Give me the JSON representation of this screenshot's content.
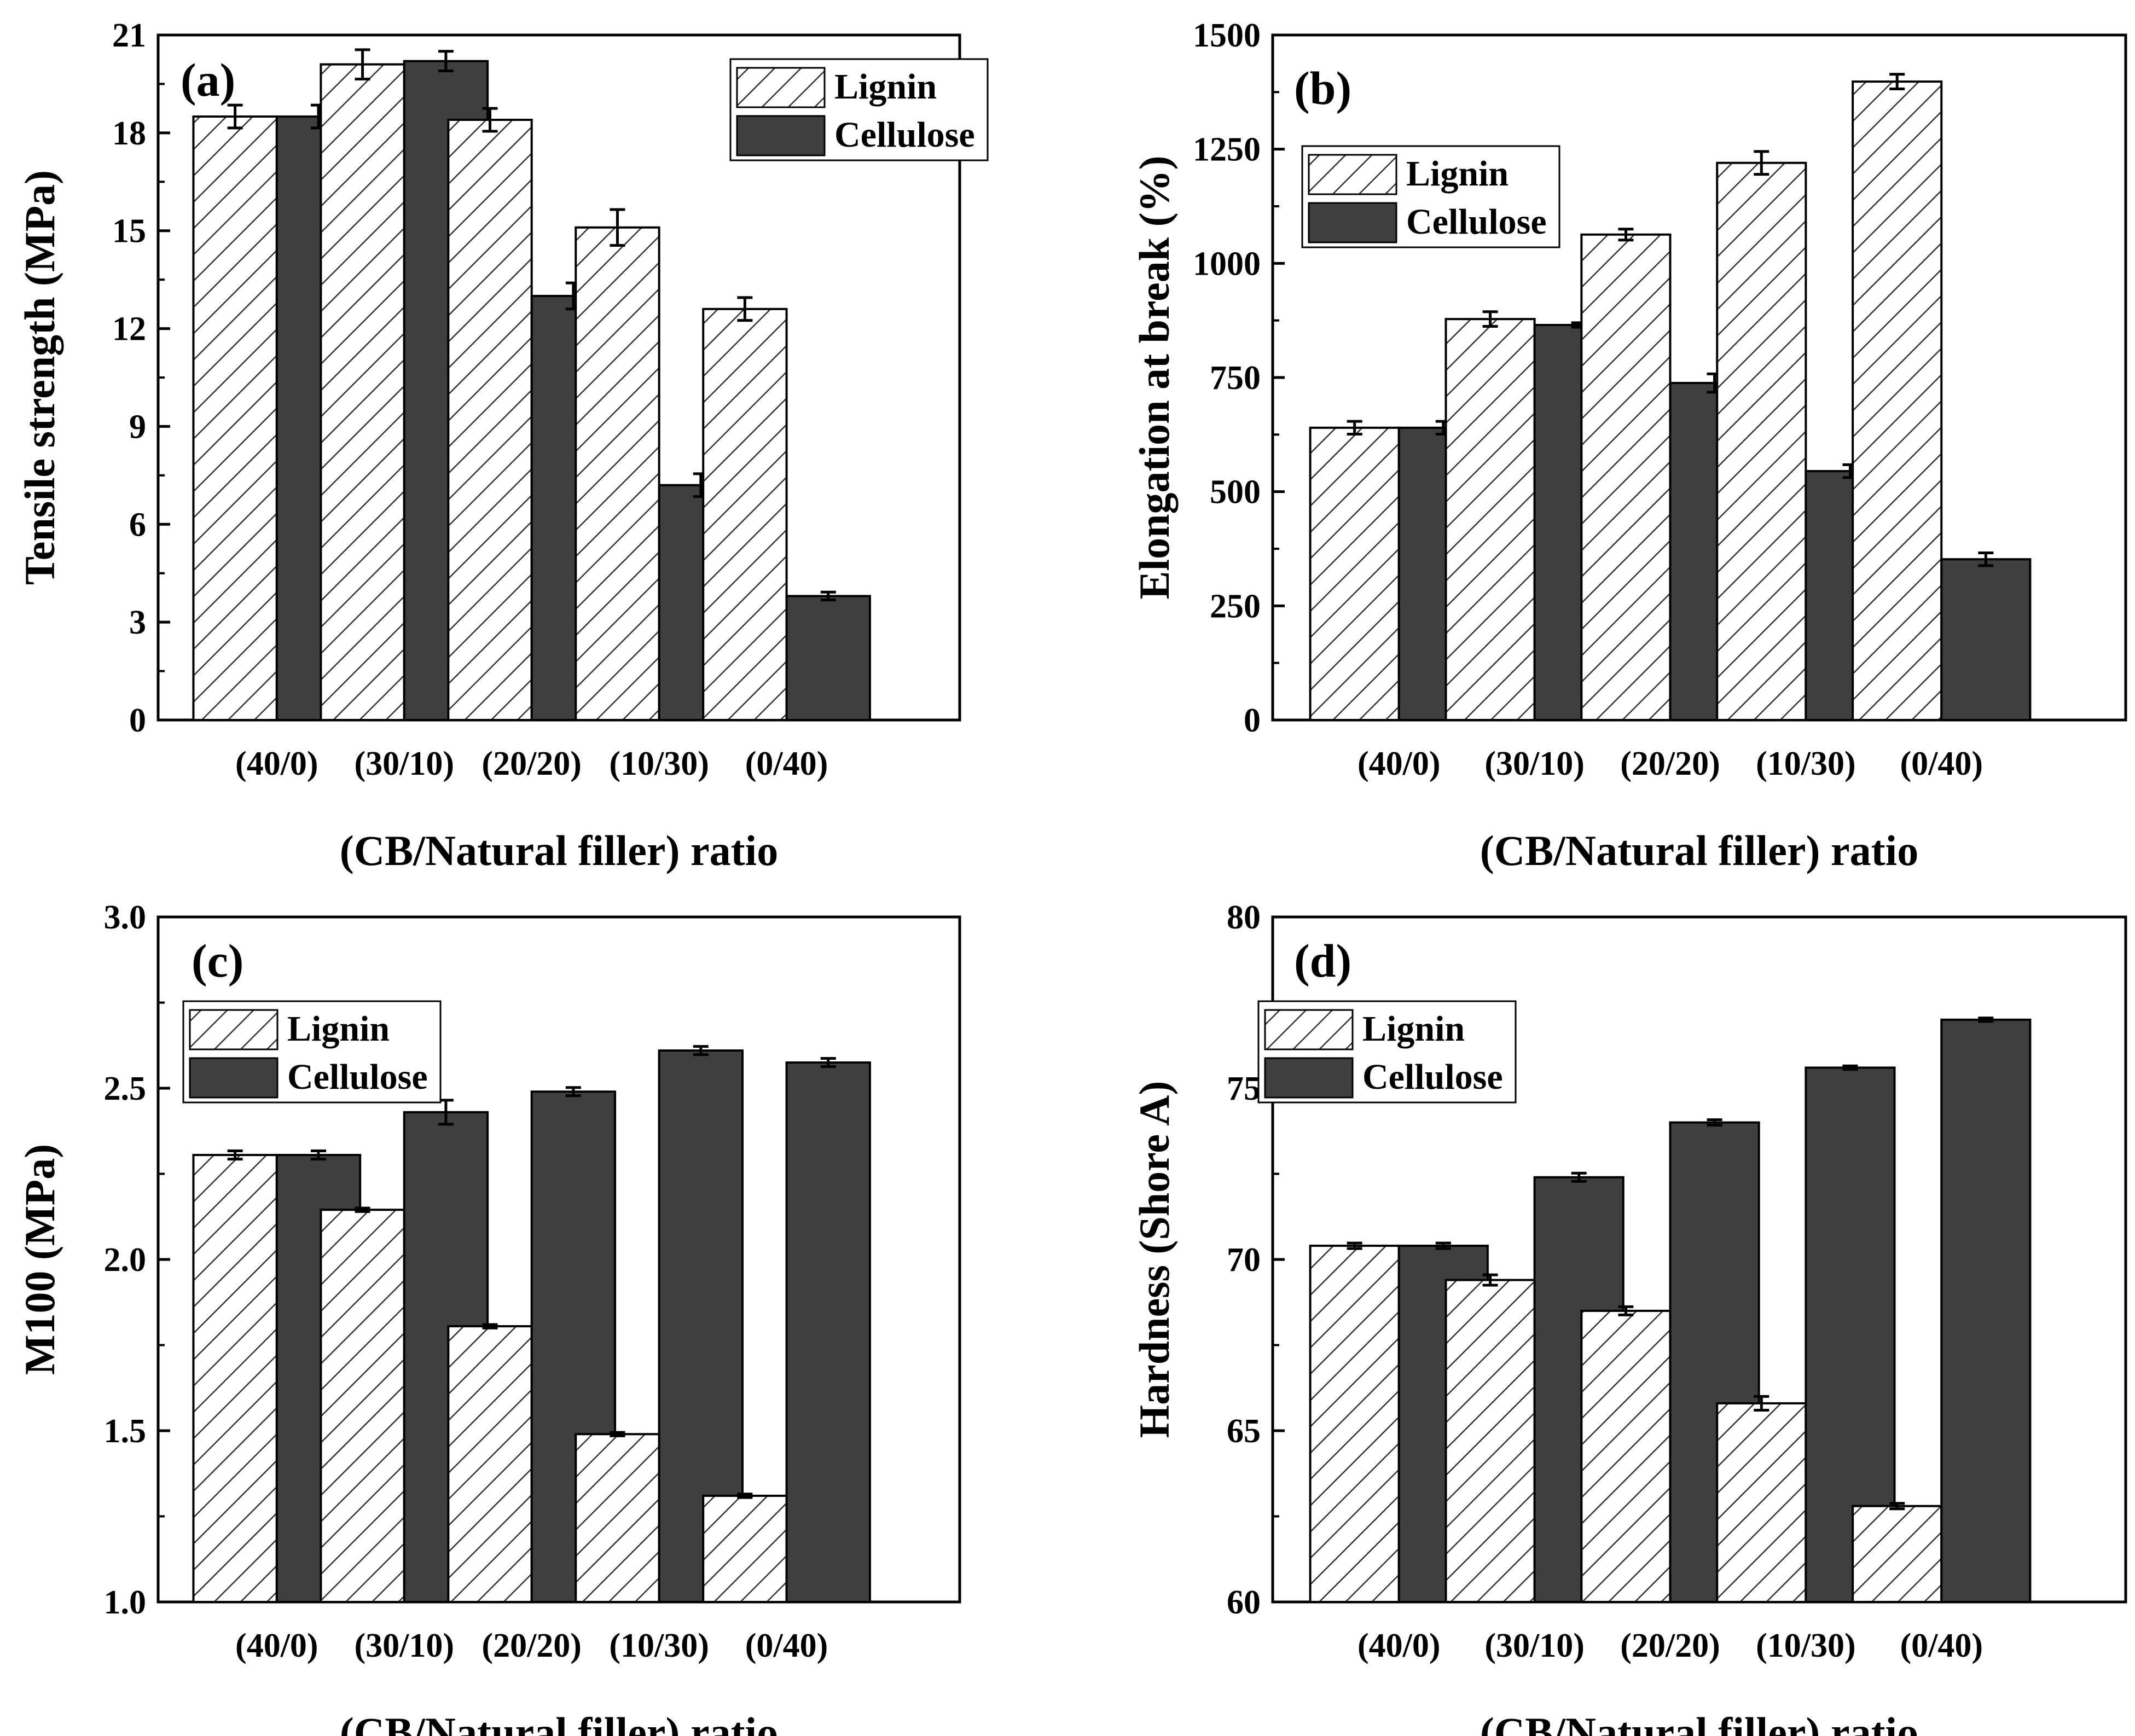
{
  "figure": {
    "panels": [
      "(a)",
      "(b)",
      "(c)",
      "(d)"
    ]
  },
  "colors": {
    "cellulose_fill": "#3f3f3f",
    "lignin_fill": "#ffffff",
    "hatch_stroke": "#333333",
    "axis": "#000000"
  },
  "chart_data": [
    {
      "type": "bar",
      "panel_label": "(a)",
      "title": "",
      "xlabel": "(CB/Natural filler) ratio",
      "ylabel": "Tensile strength (MPa)",
      "categories": [
        "(40/0)",
        "(30/10)",
        "(20/20)",
        "(10/30)",
        "(0/40)"
      ],
      "ylim": [
        0,
        21
      ],
      "yticks": [
        0,
        3,
        6,
        9,
        12,
        15,
        18,
        21
      ],
      "ytick_labels": [
        "0",
        "3",
        "6",
        "9",
        "12",
        "15",
        "18",
        "21"
      ],
      "legend": [
        "Lignin",
        "Cellulose"
      ],
      "legend_position": "top-right",
      "series": [
        {
          "name": "Lignin",
          "values": [
            18.5,
            20.1,
            18.4,
            15.1,
            12.6
          ],
          "errors": [
            0.35,
            0.45,
            0.35,
            0.55,
            0.35
          ]
        },
        {
          "name": "Cellulose",
          "values": [
            18.5,
            20.2,
            13.0,
            7.2,
            3.8
          ],
          "errors": [
            0.35,
            0.3,
            0.4,
            0.35,
            0.12
          ]
        }
      ]
    },
    {
      "type": "bar",
      "panel_label": "(b)",
      "title": "",
      "xlabel": "(CB/Natural filler) ratio",
      "ylabel": "Elongation at break (%)",
      "categories": [
        "(40/0)",
        "(30/10)",
        "(20/20)",
        "(10/30)",
        "(0/40)"
      ],
      "ylim": [
        0,
        1500
      ],
      "yticks": [
        0,
        250,
        500,
        750,
        1000,
        1250,
        1500
      ],
      "ytick_labels": [
        "0",
        "250",
        "500",
        "750",
        "1000",
        "1250",
        "1500"
      ],
      "legend": [
        "Lignin",
        "Cellulose"
      ],
      "legend_position": "top-left",
      "series": [
        {
          "name": "Lignin",
          "values": [
            640,
            878,
            1063,
            1220,
            1398
          ],
          "errors": [
            14,
            16,
            12,
            25,
            16
          ]
        },
        {
          "name": "Cellulose",
          "values": [
            640,
            865,
            738,
            545,
            352
          ],
          "errors": [
            14,
            5,
            20,
            14,
            14
          ]
        }
      ]
    },
    {
      "type": "bar",
      "panel_label": "(c)",
      "title": "",
      "xlabel": "(CB/Natural filler) ratio",
      "ylabel": "M100 (MPa)",
      "categories": [
        "(40/0)",
        "(30/10)",
        "(20/20)",
        "(10/30)",
        "(0/40)"
      ],
      "ylim": [
        1.0,
        3.0
      ],
      "yticks": [
        1.0,
        1.5,
        2.0,
        2.5,
        3.0
      ],
      "ytick_labels": [
        "1.0",
        "1.5",
        "2.0",
        "2.5",
        "3.0"
      ],
      "legend": [
        "Lignin",
        "Cellulose"
      ],
      "legend_position": "top-left",
      "series": [
        {
          "name": "Lignin",
          "values": [
            2.305,
            2.145,
            1.805,
            1.49,
            1.31
          ],
          "errors": [
            0.012,
            0.005,
            0.005,
            0.005,
            0.005
          ]
        },
        {
          "name": "Cellulose",
          "values": [
            2.305,
            2.43,
            2.49,
            2.61,
            2.575
          ],
          "errors": [
            0.012,
            0.035,
            0.012,
            0.012,
            0.012
          ]
        }
      ]
    },
    {
      "type": "bar",
      "panel_label": "(d)",
      "title": "",
      "xlabel": "(CB/Natural filler) ratio",
      "ylabel": "Hardness (Shore A)",
      "categories": [
        "(40/0)",
        "(30/10)",
        "(20/20)",
        "(10/30)",
        "(0/40)"
      ],
      "ylim": [
        60,
        80
      ],
      "yticks": [
        60,
        65,
        70,
        75,
        80
      ],
      "ytick_labels": [
        "60",
        "65",
        "70",
        "75",
        "80"
      ],
      "legend": [
        "Lignin",
        "Cellulose"
      ],
      "legend_position": "top-left",
      "series": [
        {
          "name": "Lignin",
          "values": [
            70.4,
            69.4,
            68.5,
            65.8,
            62.8
          ],
          "errors": [
            0.08,
            0.15,
            0.12,
            0.2,
            0.08
          ]
        },
        {
          "name": "Cellulose",
          "values": [
            70.4,
            72.4,
            74.0,
            75.6,
            77.0
          ],
          "errors": [
            0.08,
            0.12,
            0.08,
            0.05,
            0.05
          ]
        }
      ]
    }
  ]
}
